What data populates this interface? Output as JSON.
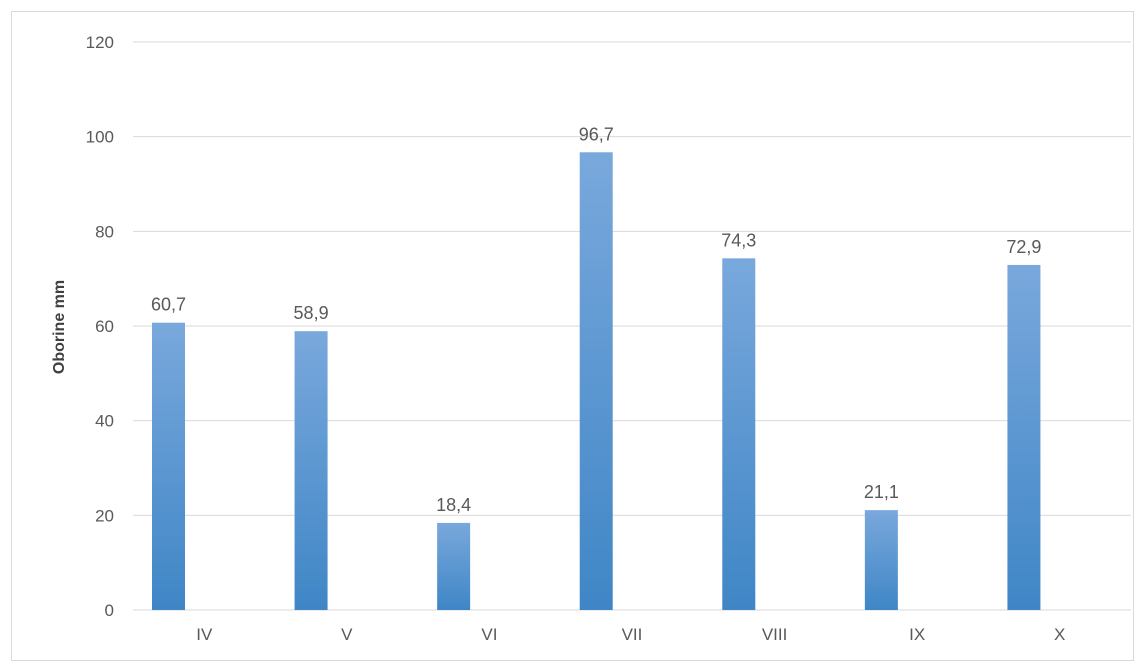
{
  "chart_data": {
    "type": "bar",
    "categories": [
      "IV",
      "V",
      "VI",
      "VII",
      "VIII",
      "IX",
      "X"
    ],
    "values": [
      60.7,
      58.9,
      18.4,
      96.7,
      74.3,
      21.1,
      72.9
    ],
    "value_labels": [
      "60,7",
      "58,9",
      "18,4",
      "96,7",
      "74,3",
      "21,1",
      "72,9"
    ],
    "title": "",
    "xlabel": "",
    "ylabel": "Oborine mm",
    "ylim": [
      0,
      120
    ],
    "yticks": [
      0,
      20,
      40,
      60,
      80,
      100,
      120
    ],
    "grid": true,
    "legend": "none",
    "colors": {
      "bar_top": "#79A8DC",
      "bar_bottom": "#3F86C6",
      "grid": "#d9d9d9",
      "text": "#595959"
    }
  }
}
